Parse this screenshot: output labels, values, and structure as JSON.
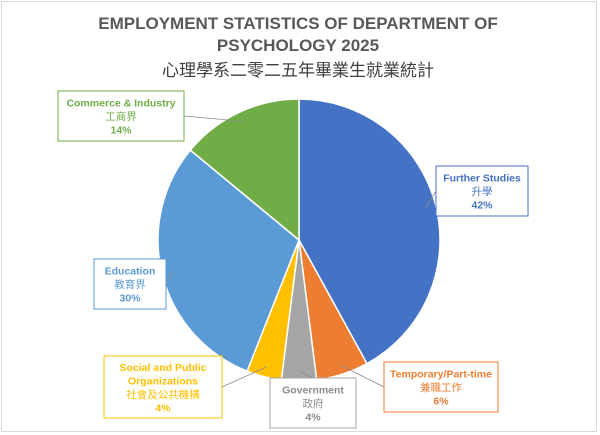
{
  "chart_data": {
    "type": "pie",
    "title": "EMPLOYMENT STATISTICS OF DEPARTMENT OF PSYCHOLOGY 2025",
    "title_lines": [
      "EMPLOYMENT STATISTICS OF DEPARTMENT OF",
      "PSYCHOLOGY 2025"
    ],
    "subtitle": "心理學系二零二五年畢業生就業統計",
    "legend": "none",
    "slices": [
      {
        "label": "Further Studies",
        "label_zh": "升學",
        "value": 42,
        "value_label": "42%",
        "color": "#4472C4"
      },
      {
        "label": "Temporary/Part-time",
        "label_zh": "兼職工作",
        "value": 6,
        "value_label": "6%",
        "color": "#ED7D31"
      },
      {
        "label": "Government",
        "label_zh": "政府",
        "value": 4,
        "value_label": "4%",
        "color": "#A5A5A5"
      },
      {
        "label": "Social and Public Organizations",
        "label_lines": [
          "Social and Public",
          "Organizations"
        ],
        "label_zh": "社會及公共機構",
        "value": 4,
        "value_label": "4%",
        "color": "#FFC000"
      },
      {
        "label": "Education",
        "label_zh": "教育界",
        "value": 30,
        "value_label": "30%",
        "color": "#5B9BD5"
      },
      {
        "label": "Commerce & Industry",
        "label_zh": "工商界",
        "value": 14,
        "value_label": "14%",
        "color": "#70AD47"
      }
    ]
  }
}
